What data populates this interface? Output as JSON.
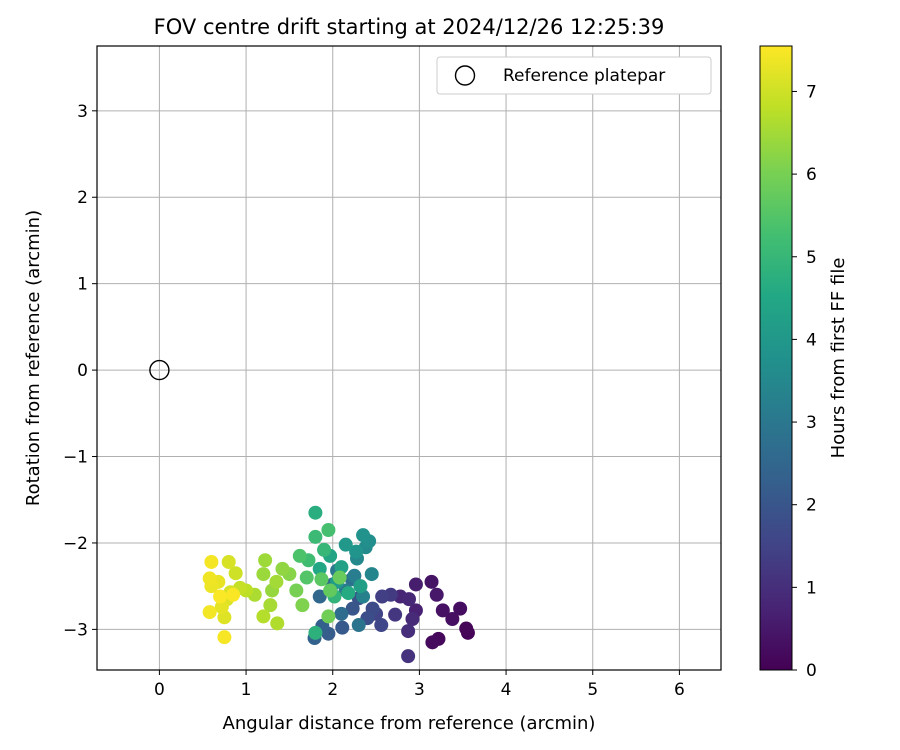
{
  "chart_data": {
    "type": "scatter",
    "title": "FOV centre drift starting at 2024/12/26 12:25:39",
    "xlabel": "Angular distance from reference (arcmin)",
    "ylabel": "Rotation from reference (arcmin)",
    "xlim": [
      -0.72,
      6.48
    ],
    "ylim": [
      -3.47,
      3.75
    ],
    "xticks": [
      0,
      1,
      2,
      3,
      4,
      5,
      6
    ],
    "yticks": [
      -3,
      -2,
      -1,
      0,
      1,
      2,
      3
    ],
    "grid": true,
    "legend": {
      "position": "top-right",
      "entries": [
        "Reference platepar"
      ]
    },
    "reference_point": {
      "name": "Reference platepar",
      "x": 0,
      "y": 0
    },
    "colorbar": {
      "label": "Hours from first FF file",
      "colormap": "viridis",
      "range": [
        0,
        7.55
      ],
      "ticks": [
        0,
        1,
        2,
        3,
        4,
        5,
        6,
        7
      ]
    },
    "series": [
      {
        "points": [
          [
            3.56,
            -3.04,
            0.05
          ],
          [
            3.54,
            -2.99,
            0.1
          ],
          [
            3.22,
            -3.11,
            0.15
          ],
          [
            3.15,
            -3.15,
            0.2
          ],
          [
            3.47,
            -2.76,
            0.25
          ],
          [
            3.38,
            -2.88,
            0.3
          ],
          [
            3.27,
            -2.78,
            0.35
          ],
          [
            3.14,
            -2.45,
            0.4
          ],
          [
            3.2,
            -2.6,
            0.5
          ],
          [
            2.96,
            -2.48,
            0.6
          ],
          [
            2.96,
            -2.78,
            0.7
          ],
          [
            2.78,
            -2.62,
            0.8
          ],
          [
            2.88,
            -2.65,
            0.85
          ],
          [
            2.92,
            -2.88,
            0.9
          ],
          [
            2.87,
            -3.02,
            1.0
          ],
          [
            2.87,
            -3.31,
            1.1
          ],
          [
            2.72,
            -2.83,
            1.2
          ],
          [
            2.67,
            -2.6,
            1.3
          ],
          [
            2.57,
            -2.62,
            1.4
          ],
          [
            2.5,
            -2.82,
            1.5
          ],
          [
            2.56,
            -2.95,
            1.6
          ],
          [
            2.46,
            -2.76,
            1.7
          ],
          [
            2.4,
            -2.87,
            1.8
          ],
          [
            2.3,
            -2.64,
            1.9
          ],
          [
            2.23,
            -2.76,
            2.0
          ],
          [
            2.11,
            -2.98,
            2.1
          ],
          [
            1.95,
            -3.05,
            2.2
          ],
          [
            1.88,
            -2.96,
            2.3
          ],
          [
            1.79,
            -3.1,
            2.4
          ],
          [
            1.85,
            -2.62,
            2.5
          ],
          [
            2.0,
            -2.48,
            2.6
          ],
          [
            2.1,
            -2.82,
            2.7
          ],
          [
            2.22,
            -2.42,
            2.8
          ],
          [
            2.3,
            -2.95,
            2.9
          ],
          [
            2.05,
            -2.32,
            3.0
          ],
          [
            2.15,
            -2.55,
            3.1
          ],
          [
            2.25,
            -2.38,
            3.2
          ],
          [
            2.35,
            -2.62,
            3.3
          ],
          [
            2.45,
            -2.36,
            3.4
          ],
          [
            2.28,
            -2.18,
            3.5
          ],
          [
            2.38,
            -2.05,
            3.6
          ],
          [
            2.42,
            -1.98,
            3.7
          ],
          [
            2.35,
            -1.91,
            3.8
          ],
          [
            2.27,
            -2.1,
            3.9
          ],
          [
            2.15,
            -2.02,
            4.0
          ],
          [
            2.05,
            -2.45,
            4.1
          ],
          [
            2.32,
            -2.5,
            4.2
          ],
          [
            2.1,
            -2.28,
            4.3
          ],
          [
            1.97,
            -2.15,
            4.4
          ],
          [
            1.85,
            -2.3,
            4.5
          ],
          [
            2.18,
            -2.58,
            4.6
          ],
          [
            1.8,
            -1.65,
            4.7
          ],
          [
            1.8,
            -3.04,
            4.8
          ],
          [
            2.02,
            -2.62,
            4.9
          ],
          [
            1.9,
            -2.08,
            5.0
          ],
          [
            1.8,
            -1.93,
            5.1
          ],
          [
            1.72,
            -2.2,
            5.2
          ],
          [
            1.95,
            -1.85,
            5.3
          ],
          [
            1.62,
            -2.15,
            5.4
          ],
          [
            1.7,
            -2.4,
            5.5
          ],
          [
            1.87,
            -2.42,
            5.6
          ],
          [
            1.97,
            -2.55,
            5.7
          ],
          [
            2.08,
            -2.4,
            5.8
          ],
          [
            1.95,
            -2.85,
            5.9
          ],
          [
            1.58,
            -2.55,
            6.0
          ],
          [
            1.65,
            -2.72,
            6.1
          ],
          [
            1.5,
            -2.36,
            6.2
          ],
          [
            1.42,
            -2.3,
            6.3
          ],
          [
            1.3,
            -2.55,
            6.35
          ],
          [
            1.2,
            -2.36,
            6.4
          ],
          [
            1.22,
            -2.2,
            6.45
          ],
          [
            1.35,
            -2.45,
            6.5
          ],
          [
            1.28,
            -2.72,
            6.55
          ],
          [
            1.1,
            -2.6,
            6.6
          ],
          [
            1.36,
            -2.93,
            6.65
          ],
          [
            1.2,
            -2.85,
            6.7
          ],
          [
            1.0,
            -2.55,
            6.8
          ],
          [
            0.93,
            -2.52,
            6.9
          ],
          [
            0.88,
            -2.35,
            7.0
          ],
          [
            0.82,
            -2.57,
            7.05
          ],
          [
            0.8,
            -2.22,
            7.1
          ],
          [
            0.78,
            -2.65,
            7.15
          ],
          [
            0.75,
            -2.86,
            7.2
          ],
          [
            0.72,
            -2.74,
            7.25
          ],
          [
            0.68,
            -2.45,
            7.3
          ],
          [
            0.6,
            -2.5,
            7.35
          ],
          [
            0.58,
            -2.41,
            7.4
          ],
          [
            0.58,
            -2.8,
            7.42
          ],
          [
            0.6,
            -2.22,
            7.45
          ],
          [
            0.75,
            -3.09,
            7.48
          ],
          [
            0.85,
            -2.6,
            7.5
          ],
          [
            0.7,
            -2.62,
            7.52
          ]
        ]
      }
    ]
  }
}
